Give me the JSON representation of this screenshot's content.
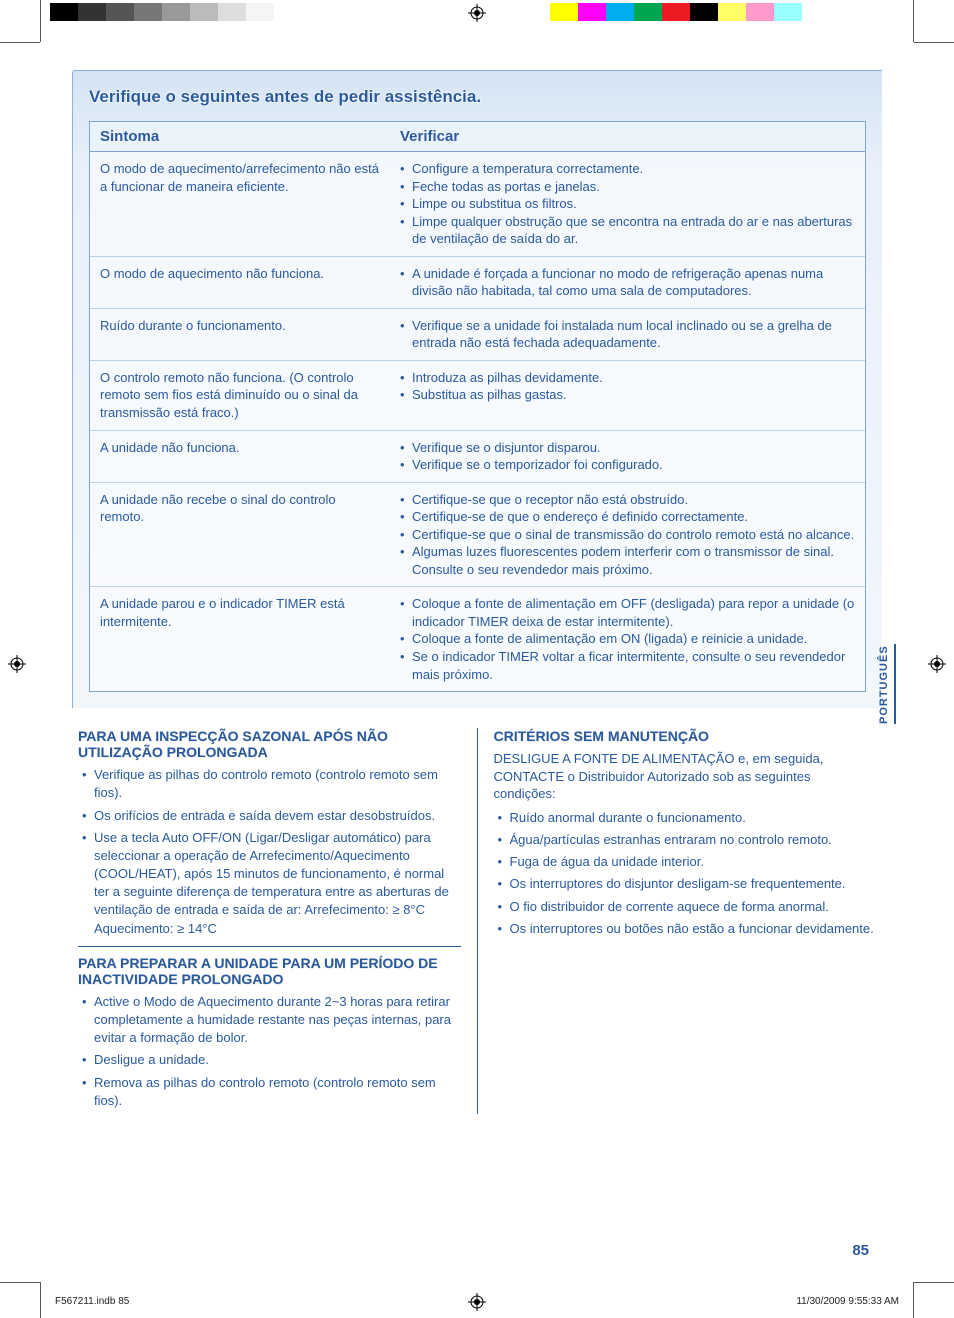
{
  "print": {
    "swatches_left": [
      "#000000",
      "#333333",
      "#555555",
      "#777777",
      "#999999",
      "#bbbbbb",
      "#dddddd",
      "#f5f5f5",
      "#ffffff",
      "#ffffff",
      "#ffffff"
    ],
    "swatches_right": [
      "#ffff00",
      "#ff00ff",
      "#00aeef",
      "#00a651",
      "#ed1c24",
      "#000000",
      "#ffff66",
      "#ff99cc",
      "#99ffff",
      "#ffffff"
    ]
  },
  "main": {
    "title": "Verifique o seguintes antes de pedir assistência.",
    "headers": {
      "symptom": "Sintoma",
      "check": "Verificar"
    },
    "rows": [
      {
        "symptom": "O modo de aquecimento/arrefecimento não está a funcionar de maneira eficiente.",
        "checks": [
          "Configure a temperatura correctamente.",
          "Feche todas as portas e janelas.",
          "Limpe ou substitua os filtros.",
          "Limpe qualquer obstrução que se encontra na entrada do ar e nas aberturas de ventilação de saída do ar."
        ]
      },
      {
        "symptom": "O modo de aquecimento não funciona.",
        "checks": [
          "A unidade é forçada a funcionar no modo de refrigeração apenas numa divisão não habitada, tal como uma sala de computadores."
        ]
      },
      {
        "symptom": "Ruído durante o funcionamento.",
        "checks": [
          "Verifique se a unidade foi instalada num local inclinado ou se a grelha de entrada não está fechada adequadamente."
        ]
      },
      {
        "symptom": "O controlo remoto não funciona.\n(O controlo remoto sem fios está diminuído ou o sinal da transmissão está fraco.)",
        "checks": [
          "Introduza as pilhas devidamente.",
          "Substitua as pilhas gastas."
        ]
      },
      {
        "symptom": "A unidade não funciona.",
        "checks": [
          "Verifique se o disjuntor disparou.",
          "Verifique se o temporizador foi configurado."
        ]
      },
      {
        "symptom": "A unidade não recebe o sinal do controlo remoto.",
        "checks": [
          "Certifique-se que o receptor não está obstruído.",
          "Certifique-se de que o endereço é definido correctamente.",
          "Certifique-se que o sinal de transmissão do controlo remoto está no alcance.",
          "Algumas luzes fluorescentes podem interferir com o transmissor de sinal. Consulte o seu revendedor mais próximo."
        ]
      },
      {
        "symptom": "A unidade parou e o indicador TIMER está intermitente.",
        "checks": [
          "Coloque a fonte de alimentação em OFF (desligada) para repor a unidade (o indicador TIMER deixa de estar intermitente).",
          "Coloque a fonte de alimentação em ON (ligada) e reinicie a unidade.",
          "Se o indicador TIMER voltar a ficar intermitente, consulte o seu revendedor mais próximo."
        ]
      }
    ]
  },
  "lower": {
    "left": [
      {
        "title": "PARA UMA INSPECÇÃO SAZONAL APÓS NÃO UTILIZAÇÃO PROLONGADA",
        "items": [
          "Verifique as pilhas do controlo remoto (controlo remoto sem fios).",
          "Os orifícios de entrada e saída devem estar desobstruídos.",
          "Use a tecla Auto OFF/ON (Ligar/Desligar automático) para seleccionar a operação de Arrefecimento/Aquecimento (COOL/HEAT), após 15 minutos de funcionamento, é normal ter a seguinte diferença de temperatura entre as aberturas de ventilação de entrada e saída de ar: Arrefecimento: ≥ 8°C      Aquecimento: ≥ 14°C"
        ]
      },
      {
        "title": "PARA PREPARAR A UNIDADE PARA UM PERÍODO DE INACTIVIDADE PROLONGADO",
        "items": [
          "Active o Modo de Aquecimento durante 2~3 horas para retirar completamente a humidade restante nas peças internas, para evitar a formação de bolor.",
          "Desligue a unidade.",
          "Remova as pilhas do controlo remoto (controlo remoto sem fios)."
        ]
      }
    ],
    "right": {
      "title": "CRITÉRIOS SEM MANUTENÇÃO",
      "intro": "DESLIGUE A FONTE DE ALIMENTAÇÃO e, em seguida, CONTACTE o Distribuidor Autorizado sob as seguintes condições:",
      "items": [
        "Ruído anormal durante o funcionamento.",
        "Água/partículas estranhas entraram no controlo remoto.",
        "Fuga de água da unidade interior.",
        "Os interruptores do disjuntor desligam-se frequentemente.",
        "O fio distribuidor de corrente aquece de forma anormal.",
        "Os interruptores ou botões não estão a funcionar devidamente."
      ]
    }
  },
  "lang_tab": "PORTUGUÊS",
  "page_number": "85",
  "footer": {
    "left": "F567211.indb   85",
    "right": "11/30/2009   9:55:33 AM"
  }
}
